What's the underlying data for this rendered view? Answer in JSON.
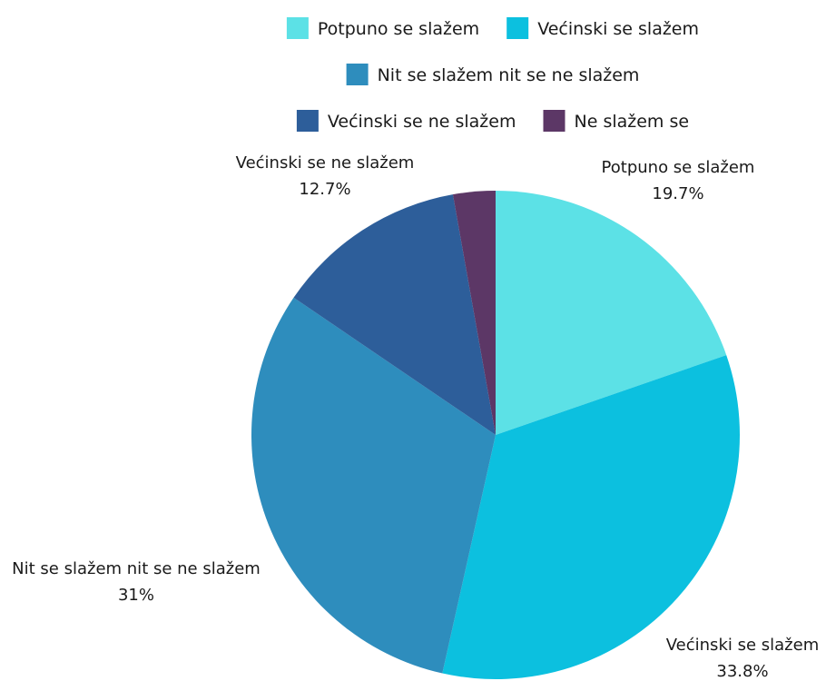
{
  "chart_data": {
    "type": "pie",
    "legend_position": "top",
    "slices": [
      {
        "label": "Potpuno se slažem",
        "value": 19.7,
        "percent_text": "19.7%",
        "color": "#5CE1E6"
      },
      {
        "label": "Većinski se slažem",
        "value": 33.8,
        "percent_text": "33.8%",
        "color": "#0CC0DF"
      },
      {
        "label": "Nit se slažem nit se ne slažem",
        "value": 31,
        "percent_text": "31%",
        "color": "#2E8DBD"
      },
      {
        "label": "Većinski se ne slažem",
        "value": 12.7,
        "percent_text": "12.7%",
        "color": "#2D5E9A"
      },
      {
        "label": "Ne slažem se",
        "value": 2.8,
        "percent_text": "",
        "color": "#5C3766"
      }
    ]
  }
}
